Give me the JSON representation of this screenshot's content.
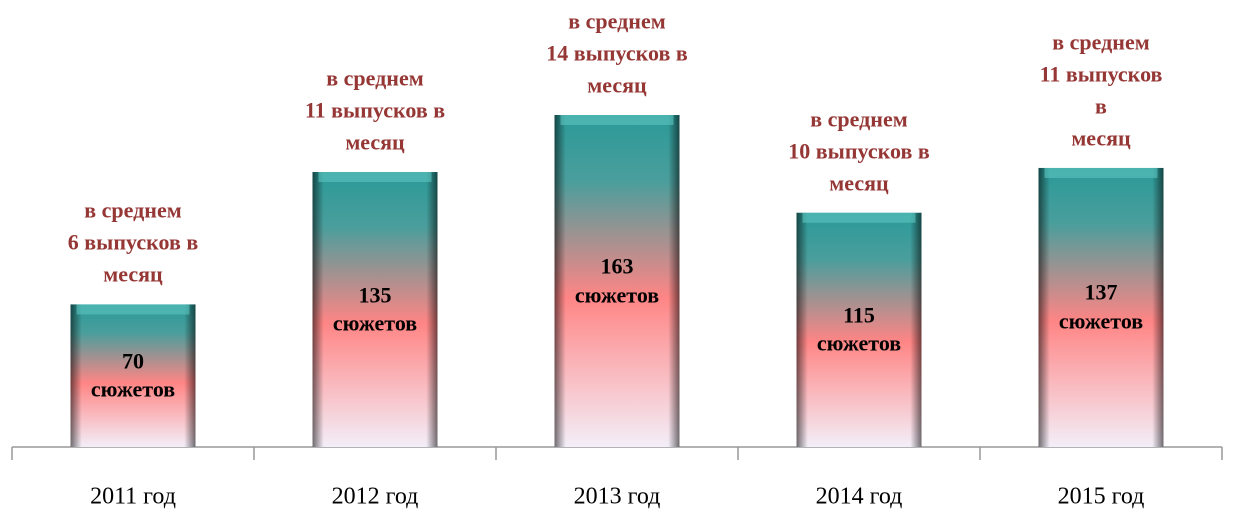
{
  "chart_data": {
    "type": "bar",
    "categories": [
      "2011 год",
      "2012 год",
      "2013 год",
      "2014 год",
      "2015 год"
    ],
    "values": [
      70,
      135,
      163,
      115,
      137
    ],
    "value_labels": [
      "70\nсюжетов",
      "135\nсюжетов",
      "163\nсюжетов",
      "115\nсюжетов",
      "137\nсюжетов"
    ],
    "annotations": [
      "в среднем\n6 выпусков в\nмесяц",
      "в среднем\n11 выпусков в\nмесяц",
      "в среднем\n14 выпусков в\nмесяц",
      "в среднем\n10 выпусков в\nмесяц",
      "в среднем\n11 выпусков в\nмесяц"
    ],
    "color": "#ff8080",
    "annotation_color": "#953735"
  }
}
